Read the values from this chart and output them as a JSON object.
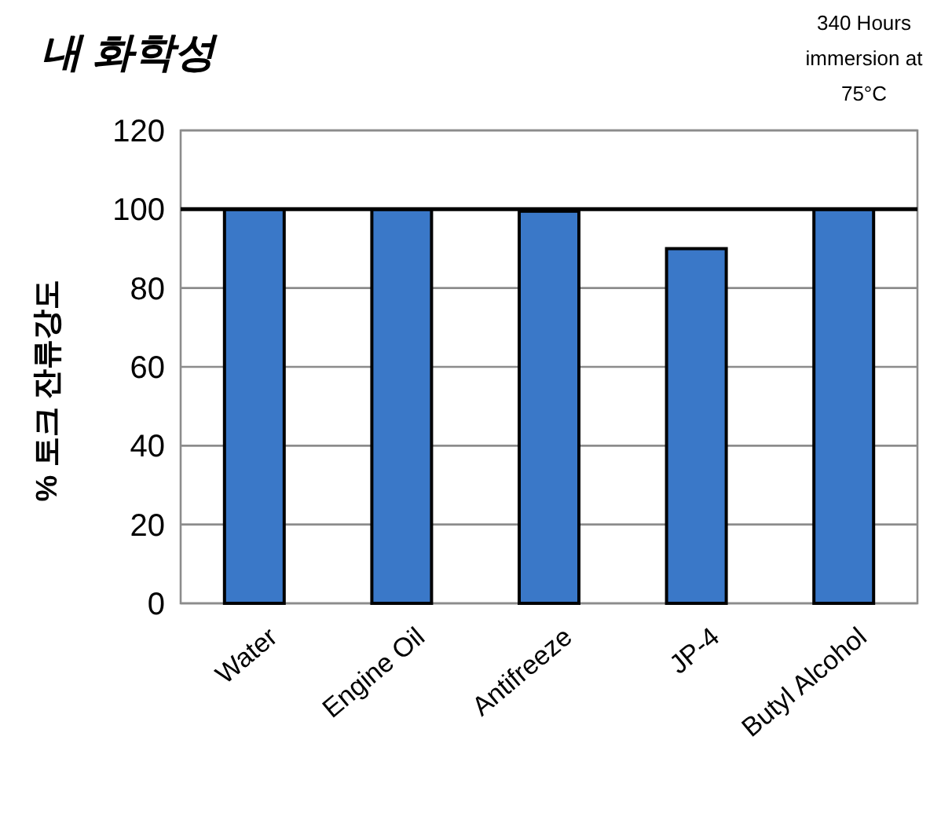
{
  "chart_data": {
    "type": "bar",
    "title": "내 화학성",
    "ylabel": "% 토크 잔류강도",
    "annotations": [
      "340 Hours immersion at 75°C"
    ],
    "categories": [
      "Water",
      "Engine Oil",
      "Antifreeze",
      "JP-4",
      "Butyl Alcohol"
    ],
    "values": [
      100,
      100,
      99.5,
      90,
      100
    ],
    "color": "#3a78c8",
    "ylim": [
      0,
      120
    ],
    "yticks": [
      0,
      20,
      40,
      60,
      80,
      100,
      120
    ],
    "grid": "y",
    "ref_lines": [
      {
        "axis": "y",
        "value": 100,
        "color": "#000000"
      }
    ]
  }
}
